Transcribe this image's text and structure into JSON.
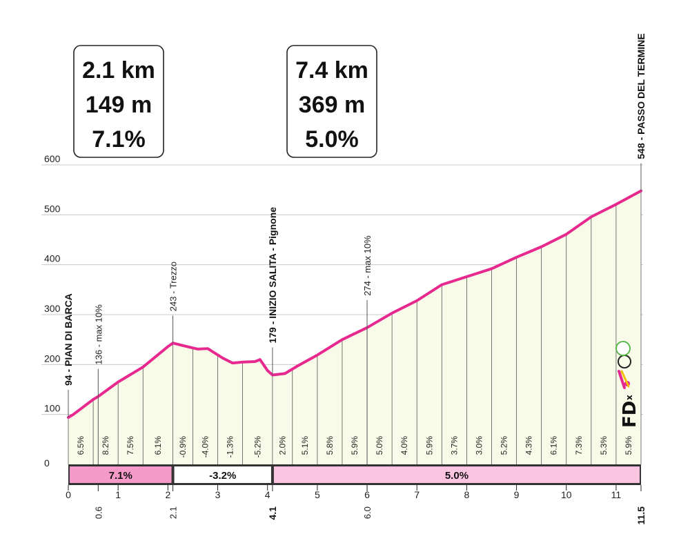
{
  "info_boxes": [
    {
      "lines": [
        "2.1 km",
        "149 m",
        "7.1%"
      ]
    },
    {
      "lines": [
        "7.4 km",
        "369 m",
        "5.0%"
      ]
    }
  ],
  "chart_data": {
    "type": "area",
    "xlim": [
      0,
      11.5
    ],
    "ylim": [
      0,
      600
    ],
    "y_ticks": [
      0,
      100,
      200,
      300,
      400,
      500,
      600
    ],
    "x_ticks": [
      "0",
      "1",
      "2",
      "3",
      "4",
      "5",
      "6",
      "7",
      "8",
      "9",
      "10",
      "11"
    ],
    "x_ticks_values": [
      0,
      1,
      2,
      3,
      4,
      5,
      6,
      7,
      8,
      9,
      10,
      11
    ],
    "x_special": [
      {
        "x": 0.6,
        "label": "0.6",
        "bold": false
      },
      {
        "x": 2.1,
        "label": "2.1",
        "bold": false
      },
      {
        "x": 4.1,
        "label": "4.1",
        "bold": true
      },
      {
        "x": 6.0,
        "label": "6.0",
        "bold": false
      },
      {
        "x": 11.5,
        "label": "11.5",
        "bold": true
      }
    ],
    "profile": [
      [
        0,
        94
      ],
      [
        0.1,
        100
      ],
      [
        0.3,
        115
      ],
      [
        0.5,
        130
      ],
      [
        0.6,
        136
      ],
      [
        1.0,
        165
      ],
      [
        1.5,
        195
      ],
      [
        2.0,
        236
      ],
      [
        2.1,
        243
      ],
      [
        2.3,
        238
      ],
      [
        2.6,
        231
      ],
      [
        2.8,
        232
      ],
      [
        3.1,
        213
      ],
      [
        3.3,
        203
      ],
      [
        3.5,
        205
      ],
      [
        3.75,
        206
      ],
      [
        3.85,
        210
      ],
      [
        4.0,
        188
      ],
      [
        4.1,
        179
      ],
      [
        4.35,
        182
      ],
      [
        4.6,
        197
      ],
      [
        5.0,
        219
      ],
      [
        5.5,
        250
      ],
      [
        6.0,
        274
      ],
      [
        6.5,
        303
      ],
      [
        7.0,
        328
      ],
      [
        7.5,
        360
      ],
      [
        8.0,
        376
      ],
      [
        8.5,
        392
      ],
      [
        9.0,
        415
      ],
      [
        9.5,
        436
      ],
      [
        10.0,
        461
      ],
      [
        10.5,
        496
      ],
      [
        11.0,
        521
      ],
      [
        11.5,
        548
      ]
    ],
    "gradients": [
      {
        "x0": 0,
        "x1": 0.5,
        "label": "6.5%"
      },
      {
        "x0": 0.5,
        "x1": 1.0,
        "label": "8.2%"
      },
      {
        "x0": 1.0,
        "x1": 1.5,
        "label": "7.5%"
      },
      {
        "x0": 1.5,
        "x1": 2.1,
        "label": "6.1%"
      },
      {
        "x0": 2.1,
        "x1": 2.5,
        "label": "-0.9%"
      },
      {
        "x0": 2.5,
        "x1": 3.0,
        "label": "-4.0%"
      },
      {
        "x0": 3.0,
        "x1": 3.5,
        "label": "-1.3%"
      },
      {
        "x0": 3.5,
        "x1": 4.1,
        "label": "-5.2%"
      },
      {
        "x0": 4.1,
        "x1": 4.5,
        "label": "2.0%"
      },
      {
        "x0": 4.5,
        "x1": 5.0,
        "label": "5.1%"
      },
      {
        "x0": 5.0,
        "x1": 5.5,
        "label": "5.8%"
      },
      {
        "x0": 5.5,
        "x1": 6.0,
        "label": "5.9%"
      },
      {
        "x0": 6.0,
        "x1": 6.5,
        "label": "5.0%"
      },
      {
        "x0": 6.5,
        "x1": 7.0,
        "label": "4.0%"
      },
      {
        "x0": 7.0,
        "x1": 7.5,
        "label": "5.9%"
      },
      {
        "x0": 7.5,
        "x1": 8.0,
        "label": "3.7%"
      },
      {
        "x0": 8.0,
        "x1": 8.5,
        "label": "3.0%"
      },
      {
        "x0": 8.5,
        "x1": 9.0,
        "label": "5.2%"
      },
      {
        "x0": 9.0,
        "x1": 9.5,
        "label": "4.3%"
      },
      {
        "x0": 9.5,
        "x1": 10.0,
        "label": "6.1%"
      },
      {
        "x0": 10.0,
        "x1": 10.5,
        "label": "7.3%"
      },
      {
        "x0": 10.5,
        "x1": 11.0,
        "label": "5.3%"
      },
      {
        "x0": 11.0,
        "x1": 11.5,
        "label": "5.9%"
      }
    ],
    "segments": [
      {
        "x0": 0,
        "x1": 2.1,
        "label": "7.1%",
        "color": "#f59ac8"
      },
      {
        "x0": 2.1,
        "x1": 4.1,
        "label": "-3.2%",
        "color": "#ffffff"
      },
      {
        "x0": 4.1,
        "x1": 11.5,
        "label": "5.0%",
        "color": "#fbc4e0"
      }
    ],
    "annotations": [
      {
        "x": 0,
        "y": 94,
        "label": "94 - PIAN DI BARCA",
        "bold": true
      },
      {
        "x": 0.6,
        "y": 136,
        "label": "136 - max 10%",
        "bold": false
      },
      {
        "x": 2.1,
        "y": 243,
        "label": "243 - Trezzo",
        "bold": false
      },
      {
        "x": 4.1,
        "y": 179,
        "label": "179 - INIZIO SALITA - Pignone",
        "bold": true
      },
      {
        "x": 6.0,
        "y": 274,
        "label": "274 - max 10%",
        "bold": false
      },
      {
        "x": 11.5,
        "y": 548,
        "label": "548 - PASSO DEL TERMINE",
        "bold": true
      }
    ],
    "colors": {
      "line": "#e6288f",
      "fill": "#f8fbe8",
      "grid": "#c8c8c8"
    }
  },
  "logo": {
    "main": "FD",
    "x": "x"
  }
}
